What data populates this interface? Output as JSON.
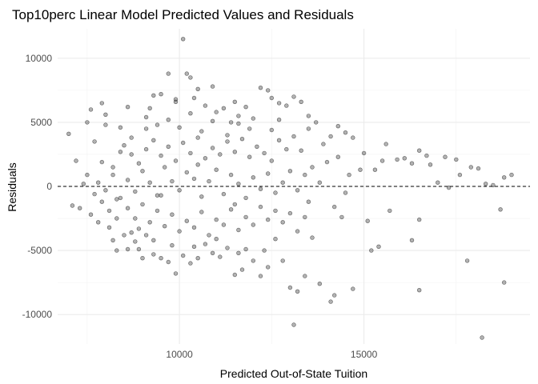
{
  "chart_data": {
    "type": "scatter",
    "title": "Top10perc Linear Model Predicted Values and Residuals",
    "xlabel": "Predicted Out-of-State Tuition",
    "ylabel": "Residuals",
    "xlim": [
      6700,
      19500
    ],
    "ylim": [
      -12300,
      12300
    ],
    "x_ticks": [
      10000,
      15000
    ],
    "y_ticks": [
      -10000,
      -5000,
      0,
      5000,
      10000
    ],
    "x_tick_labels": [
      "10000",
      "15000"
    ],
    "y_tick_labels": [
      "-10000",
      "-5000",
      "0",
      "5000",
      "10000"
    ],
    "grid": true,
    "reference_line": {
      "y": 0,
      "style": "dashed",
      "color": "#000000"
    },
    "point_color": "#000000",
    "point_opacity": 0.3,
    "points": [
      [
        7000,
        4100
      ],
      [
        7100,
        -1500
      ],
      [
        7300,
        -1700
      ],
      [
        7500,
        5000
      ],
      [
        7600,
        6000
      ],
      [
        7700,
        3500
      ],
      [
        7900,
        6500
      ],
      [
        8000,
        4800
      ],
      [
        7200,
        2000
      ],
      [
        7400,
        200
      ],
      [
        7800,
        -2800
      ],
      [
        8100,
        -3200
      ],
      [
        8300,
        -5000
      ],
      [
        8200,
        1500
      ],
      [
        8400,
        2700
      ],
      [
        8600,
        6200
      ],
      [
        8700,
        3800
      ],
      [
        8800,
        -4300
      ],
      [
        8900,
        -4900
      ],
      [
        9000,
        -5600
      ],
      [
        9100,
        4500
      ],
      [
        9300,
        7100
      ],
      [
        9500,
        7200
      ],
      [
        9700,
        8800
      ],
      [
        9900,
        6800
      ],
      [
        10100,
        11500
      ],
      [
        10200,
        8800
      ],
      [
        10300,
        8500
      ],
      [
        10500,
        7600
      ],
      [
        10700,
        6300
      ],
      [
        10900,
        7800
      ],
      [
        11000,
        5800
      ],
      [
        11200,
        6100
      ],
      [
        11400,
        5000
      ],
      [
        11600,
        4900
      ],
      [
        11800,
        6200
      ],
      [
        12000,
        5300
      ],
      [
        12200,
        7700
      ],
      [
        12400,
        7500
      ],
      [
        12500,
        6900
      ],
      [
        12700,
        6500
      ],
      [
        12900,
        6300
      ],
      [
        13100,
        7000
      ],
      [
        13300,
        6600
      ],
      [
        13500,
        5500
      ],
      [
        13700,
        5000
      ],
      [
        13900,
        3300
      ],
      [
        14100,
        3900
      ],
      [
        14300,
        4700
      ],
      [
        14500,
        4200
      ],
      [
        14700,
        3800
      ],
      [
        15000,
        2600
      ],
      [
        15300,
        1300
      ],
      [
        15600,
        3300
      ],
      [
        15900,
        2100
      ],
      [
        16100,
        2200
      ],
      [
        16300,
        1800
      ],
      [
        16500,
        2800
      ],
      [
        16700,
        2400
      ],
      [
        17000,
        300
      ],
      [
        17200,
        2300
      ],
      [
        17500,
        2100
      ],
      [
        17900,
        1500
      ],
      [
        18100,
        1400
      ],
      [
        18300,
        200
      ],
      [
        18800,
        700
      ],
      [
        19000,
        900
      ],
      [
        18700,
        -1800
      ],
      [
        18800,
        -7500
      ],
      [
        18200,
        -11800
      ],
      [
        17800,
        -5800
      ],
      [
        16500,
        -8100
      ],
      [
        16500,
        -2600
      ],
      [
        16300,
        -4200
      ],
      [
        15700,
        -1900
      ],
      [
        15400,
        -4700
      ],
      [
        15200,
        -5000
      ],
      [
        14700,
        -8000
      ],
      [
        14200,
        -8500
      ],
      [
        14100,
        -9000
      ],
      [
        13800,
        -7600
      ],
      [
        13400,
        -7000
      ],
      [
        13200,
        -8200
      ],
      [
        13100,
        -10800
      ],
      [
        13000,
        -7900
      ],
      [
        12800,
        -5800
      ],
      [
        12600,
        -4100
      ],
      [
        12400,
        -6300
      ],
      [
        12200,
        -7000
      ],
      [
        12000,
        -5800
      ],
      [
        11800,
        -4900
      ],
      [
        11700,
        -6500
      ],
      [
        11500,
        -6900
      ],
      [
        11300,
        -4800
      ],
      [
        11100,
        -5500
      ],
      [
        10900,
        -5200
      ],
      [
        10700,
        -4500
      ],
      [
        10500,
        -5600
      ],
      [
        10300,
        -6000
      ],
      [
        10100,
        -5400
      ],
      [
        9900,
        -6800
      ],
      [
        9700,
        -5900
      ],
      [
        9500,
        -5600
      ],
      [
        9300,
        -4200
      ],
      [
        9100,
        -3800
      ],
      [
        8900,
        -3300
      ],
      [
        8700,
        -3600
      ],
      [
        8500,
        -3800
      ],
      [
        8300,
        -2500
      ],
      [
        8100,
        -1900
      ],
      [
        7900,
        -1200
      ],
      [
        7700,
        -600
      ],
      [
        7800,
        300
      ],
      [
        8000,
        -300
      ],
      [
        8200,
        900
      ],
      [
        8400,
        -900
      ],
      [
        8600,
        500
      ],
      [
        8800,
        -400
      ],
      [
        9000,
        1200
      ],
      [
        9200,
        300
      ],
      [
        9400,
        -700
      ],
      [
        9600,
        1500
      ],
      [
        9800,
        400
      ],
      [
        10000,
        -300
      ],
      [
        10200,
        1100
      ],
      [
        10400,
        600
      ],
      [
        10600,
        -800
      ],
      [
        10800,
        400
      ],
      [
        11000,
        1300
      ],
      [
        11200,
        -600
      ],
      [
        11400,
        900
      ],
      [
        11600,
        200
      ],
      [
        11800,
        -900
      ],
      [
        12000,
        700
      ],
      [
        12200,
        -200
      ],
      [
        12400,
        1000
      ],
      [
        12600,
        -500
      ],
      [
        12800,
        300
      ],
      [
        13000,
        1200
      ],
      [
        13200,
        -300
      ],
      [
        13400,
        900
      ],
      [
        13600,
        1500
      ],
      [
        13800,
        300
      ],
      [
        14000,
        1900
      ],
      [
        14200,
        -1600
      ],
      [
        14400,
        -2400
      ],
      [
        14600,
        900
      ],
      [
        14900,
        1300
      ],
      [
        15100,
        -2700
      ],
      [
        8500,
        3200
      ],
      [
        8700,
        2500
      ],
      [
        8900,
        1800
      ],
      [
        9100,
        2900
      ],
      [
        9300,
        3600
      ],
      [
        9500,
        2400
      ],
      [
        9700,
        3100
      ],
      [
        9900,
        2000
      ],
      [
        10100,
        3400
      ],
      [
        10300,
        2600
      ],
      [
        10500,
        3800
      ],
      [
        10700,
        2200
      ],
      [
        10900,
        3000
      ],
      [
        11100,
        2500
      ],
      [
        11300,
        3500
      ],
      [
        11500,
        2700
      ],
      [
        11700,
        3700
      ],
      [
        11900,
        2300
      ],
      [
        12100,
        3100
      ],
      [
        12300,
        2600
      ],
      [
        12500,
        4400
      ],
      [
        12700,
        3600
      ],
      [
        12900,
        2900
      ],
      [
        13100,
        3900
      ],
      [
        13300,
        2800
      ],
      [
        8600,
        -1700
      ],
      [
        8800,
        -2500
      ],
      [
        9000,
        -1400
      ],
      [
        9200,
        -2800
      ],
      [
        9400,
        -1900
      ],
      [
        9600,
        -3100
      ],
      [
        9800,
        -2200
      ],
      [
        10000,
        -3500
      ],
      [
        10200,
        -2700
      ],
      [
        10400,
        -3200
      ],
      [
        10600,
        -2000
      ],
      [
        10800,
        -3800
      ],
      [
        11000,
        -2600
      ],
      [
        11200,
        -3000
      ],
      [
        11400,
        -1800
      ],
      [
        11600,
        -3400
      ],
      [
        11800,
        -2400
      ],
      [
        12000,
        -3000
      ],
      [
        12200,
        -1600
      ],
      [
        12400,
        -2600
      ],
      [
        12600,
        -1900
      ],
      [
        12800,
        -2800
      ],
      [
        13000,
        -2100
      ],
      [
        13200,
        -3500
      ],
      [
        13400,
        -2400
      ],
      [
        13600,
        -4000
      ],
      [
        9400,
        4800
      ],
      [
        9700,
        5200
      ],
      [
        10000,
        4600
      ],
      [
        10300,
        5700
      ],
      [
        10600,
        4300
      ],
      [
        10900,
        5100
      ],
      [
        11300,
        4000
      ],
      [
        11600,
        5500
      ],
      [
        9200,
        6100
      ],
      [
        9900,
        6600
      ],
      [
        10400,
        6900
      ],
      [
        11500,
        6600
      ],
      [
        8200,
        -4200
      ],
      [
        8600,
        -4900
      ],
      [
        9300,
        -5300
      ],
      [
        9800,
        -4600
      ],
      [
        10400,
        -4700
      ],
      [
        11000,
        -4100
      ],
      [
        11600,
        -5200
      ],
      [
        12300,
        -5000
      ],
      [
        8000,
        5600
      ],
      [
        8400,
        4600
      ],
      [
        9100,
        5400
      ],
      [
        11900,
        4500
      ],
      [
        12700,
        5200
      ],
      [
        13500,
        4500
      ],
      [
        14300,
        2300
      ],
      [
        7500,
        900
      ],
      [
        7600,
        -2200
      ],
      [
        7900,
        1900
      ],
      [
        8300,
        -1000
      ],
      [
        9500,
        -700
      ],
      [
        10500,
        1700
      ],
      [
        11500,
        -1400
      ],
      [
        12500,
        2000
      ],
      [
        13500,
        -1200
      ],
      [
        14500,
        -500
      ],
      [
        15500,
        2000
      ],
      [
        16800,
        1700
      ],
      [
        17300,
        -100
      ],
      [
        17600,
        900
      ],
      [
        18500,
        100
      ]
    ]
  }
}
